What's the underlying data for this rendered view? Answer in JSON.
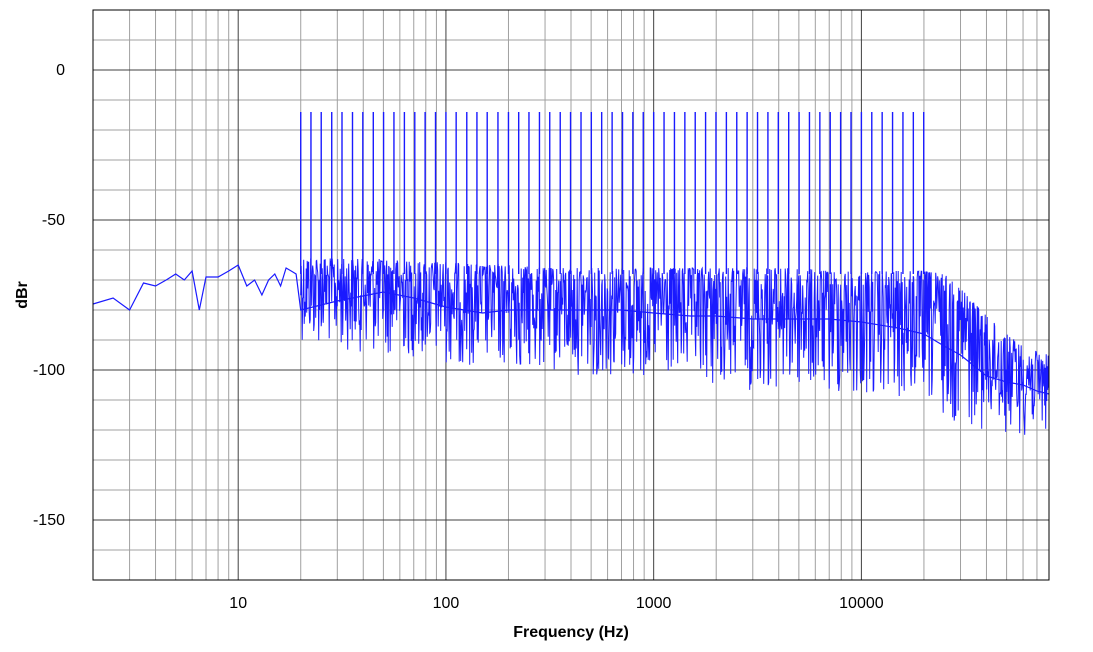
{
  "chart_data": {
    "type": "line",
    "title": "",
    "xlabel": "Frequency (Hz)",
    "ylabel": "dBr",
    "x_scale": "log",
    "xlim": [
      2,
      80000
    ],
    "ylim": [
      -170,
      20
    ],
    "x_ticks": [
      10,
      100,
      1000,
      10000
    ],
    "x_tick_labels": [
      "10",
      "100",
      "1000",
      "10000"
    ],
    "y_ticks": [
      0,
      -50,
      -100,
      -150
    ],
    "y_tick_labels": [
      "0",
      "-50",
      "-100",
      "-150"
    ],
    "grid": true,
    "legend": "none",
    "series": [
      {
        "color": "#1a1aff",
        "x": [
          2,
          2.5,
          3,
          3.5,
          4,
          4.5,
          5,
          5.5,
          6,
          6.5,
          7,
          8,
          9,
          10,
          11,
          12,
          13,
          14,
          15,
          16,
          17,
          18,
          19,
          20,
          30,
          50,
          70,
          100,
          150,
          200,
          300,
          500,
          700,
          1000,
          1500,
          2000,
          3000,
          5000,
          7000,
          10000,
          15000,
          20000,
          25000,
          30000,
          40000,
          50000,
          60000,
          70000,
          80000
        ],
        "y": [
          -78,
          -76,
          -80,
          -71,
          -72,
          -70,
          -68,
          -70,
          -67,
          -80,
          -69,
          -69,
          -67,
          -65,
          -72,
          -70,
          -75,
          -70,
          -68,
          -72,
          -66,
          -67,
          -68,
          -80,
          -77,
          -74,
          -76,
          -79,
          -81,
          -80,
          -80,
          -80,
          -80,
          -81,
          -82,
          -82,
          -83,
          -83,
          -83,
          -84,
          -86,
          -88,
          -92,
          -95,
          -102,
          -104,
          -105,
          -107,
          -108
        ]
      }
    ],
    "noise_band": {
      "x": [
        20,
        30,
        50,
        70,
        100,
        150,
        200,
        300,
        500,
        700,
        1000,
        1500,
        2000,
        3000,
        5000,
        7000,
        10000,
        15000,
        20000,
        25000,
        30000,
        40000,
        50000,
        60000,
        70000,
        80000
      ],
      "upper": [
        -62,
        -63,
        -63,
        -64,
        -64,
        -65,
        -65,
        -66,
        -66,
        -66,
        -66,
        -66,
        -66,
        -66,
        -66,
        -67,
        -67,
        -67,
        -67,
        -68,
        -72,
        -82,
        -88,
        -92,
        -94,
        -95
      ],
      "lower": [
        -90,
        -93,
        -95,
        -96,
        -98,
        -99,
        -100,
        -101,
        -102,
        -103,
        -104,
        -105,
        -106,
        -107,
        -108,
        -109,
        -110,
        -111,
        -112,
        -116,
        -118,
        -120,
        -121,
        -122,
        -121,
        -120
      ]
    },
    "tones": {
      "x": [
        20,
        22.4,
        25.1,
        28.2,
        31.6,
        35.5,
        39.8,
        44.7,
        50.1,
        56.2,
        63.1,
        70.8,
        79.4,
        89.1,
        100,
        112,
        126,
        141,
        158,
        178,
        200,
        224,
        251,
        282,
        316,
        355,
        398,
        447,
        501,
        562,
        631,
        708,
        794,
        891,
        1000,
        1122,
        1259,
        1413,
        1585,
        1778,
        1995,
        2239,
        2512,
        2818,
        3162,
        3548,
        3981,
        4467,
        5012,
        5623,
        6310,
        7079,
        7943,
        8913,
        10000,
        11220,
        12589,
        14125,
        15849,
        17783,
        19953
      ],
      "level": -14
    }
  }
}
